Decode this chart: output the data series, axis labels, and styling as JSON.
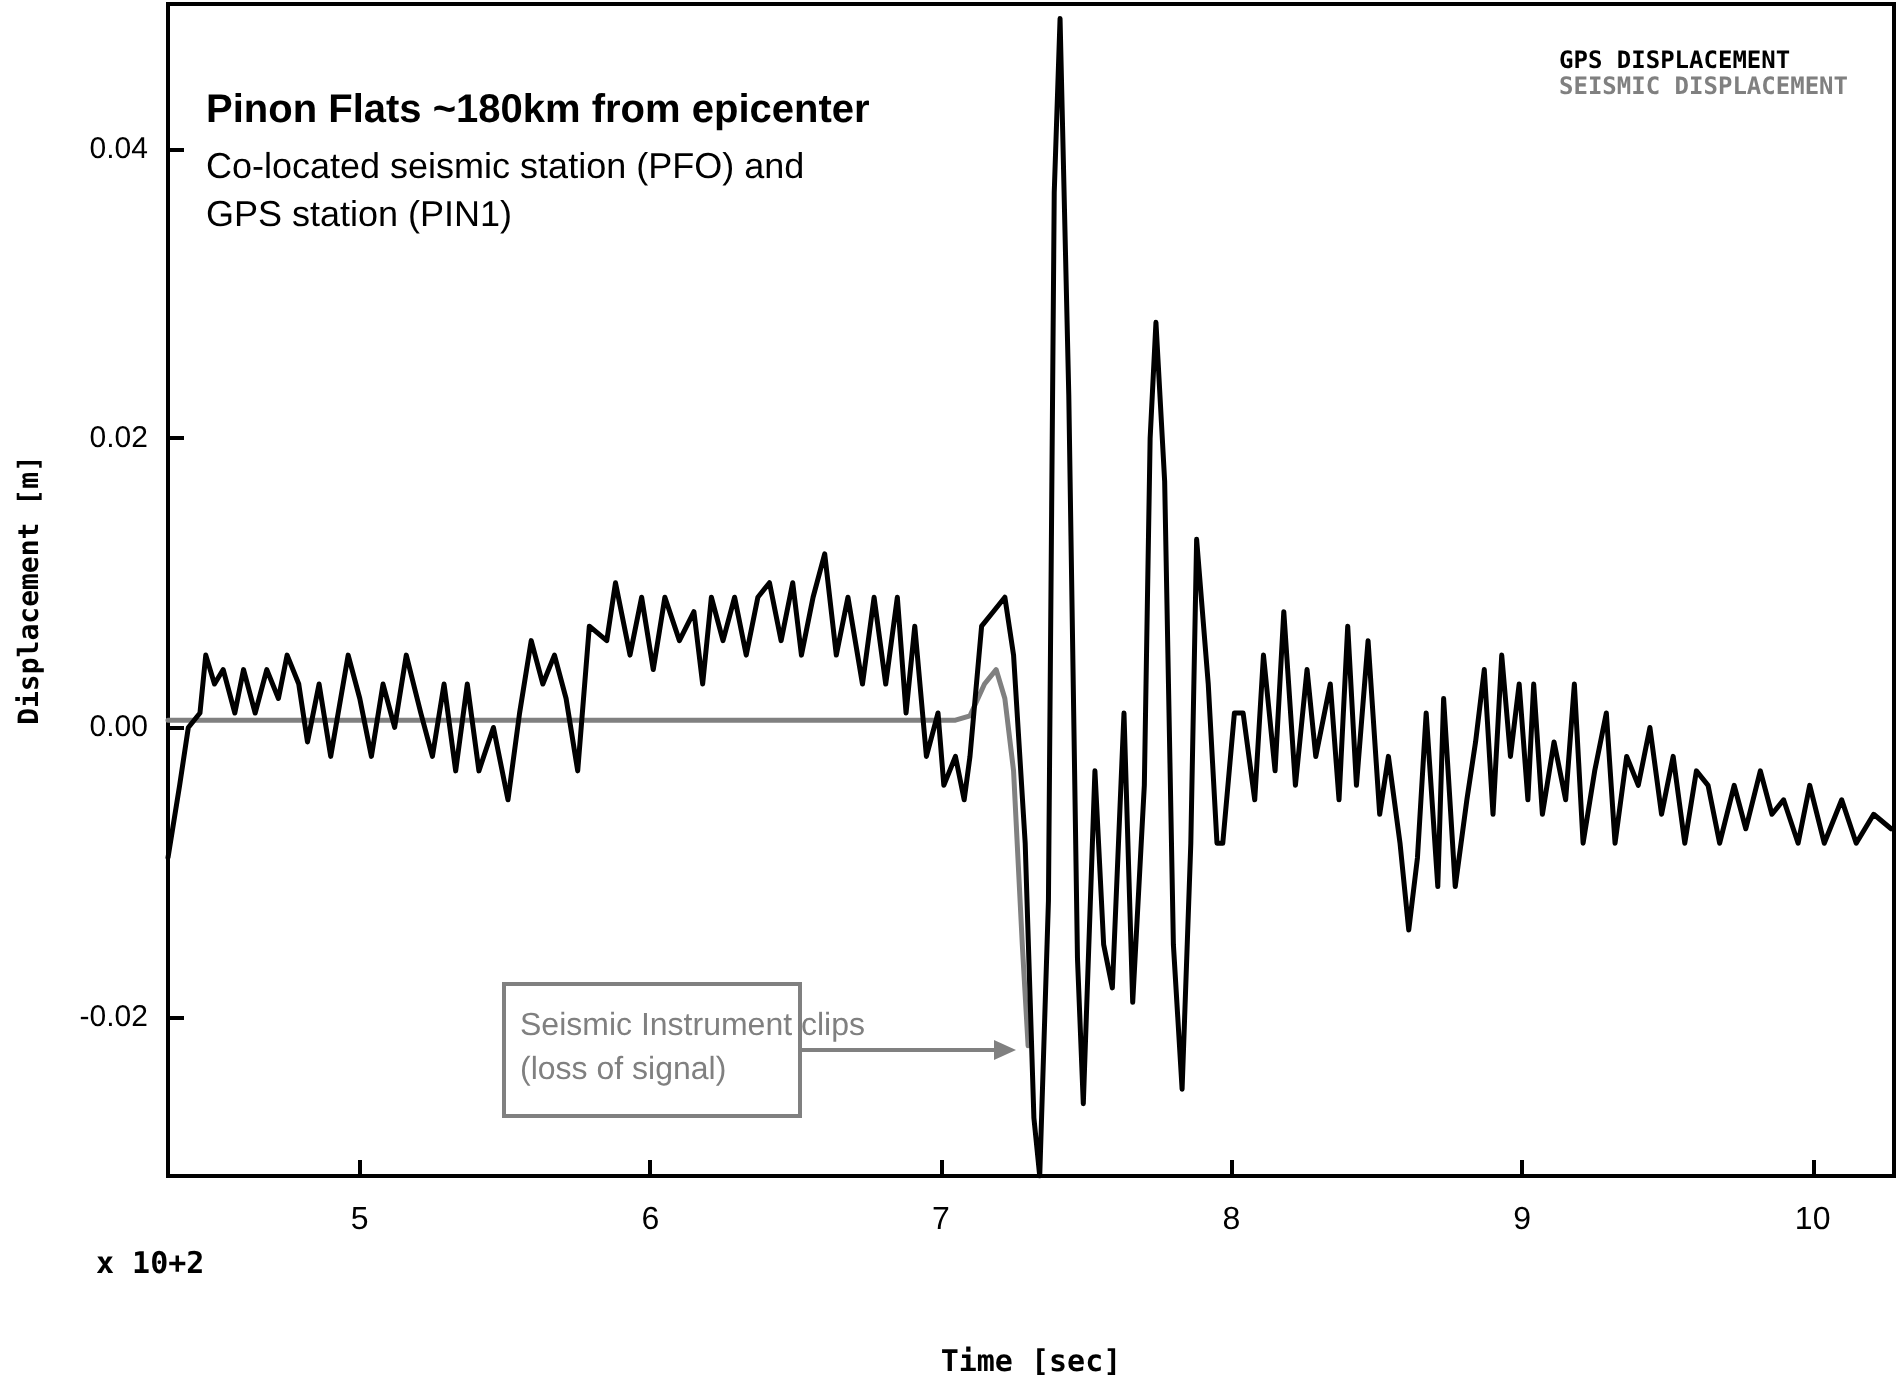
{
  "chart_data": {
    "type": "line",
    "title": "Pinon Flats ~180km from epicenter",
    "subtitle": "Co-located seismic station (PFO) and GPS station (PIN1)",
    "xlabel": "Time [sec]",
    "ylabel": "Displacement [m]",
    "xlim": [
      4.34,
      10.28
    ],
    "xticks": [
      5,
      6,
      7,
      8,
      9,
      10
    ],
    "ylim": [
      -0.031,
      0.05
    ],
    "yticks": [
      -0.02,
      {
        "value": 0,
        "label": "0.00"
      },
      0.02,
      0.04
    ],
    "grid": false,
    "legend": "top right",
    "marker": "none",
    "line_style": "solid",
    "annotations": [
      "Seismic Instrument clips\n(loss of signal)",
      "x 10+2"
    ],
    "series": [
      {
        "name": "GPS DISPLACEMENT",
        "color": "#000000",
        "x": [
          4.34,
          4.38,
          4.41,
          4.45,
          4.47,
          4.5,
          4.53,
          4.57,
          4.6,
          4.64,
          4.68,
          4.72,
          4.75,
          4.79,
          4.82,
          4.86,
          4.9,
          4.96,
          5.0,
          5.04,
          5.08,
          5.12,
          5.16,
          5.21,
          5.25,
          5.29,
          5.33,
          5.37,
          5.41,
          5.46,
          5.51,
          5.55,
          5.59,
          5.63,
          5.67,
          5.71,
          5.75,
          5.77,
          5.79,
          5.85,
          5.88,
          5.93,
          5.97,
          6.01,
          6.05,
          6.1,
          6.15,
          6.18,
          6.21,
          6.25,
          6.29,
          6.33,
          6.37,
          6.41,
          6.45,
          6.49,
          6.52,
          6.56,
          6.6,
          6.64,
          6.68,
          6.73,
          6.77,
          6.81,
          6.85,
          6.88,
          6.91,
          6.95,
          6.99,
          7.01,
          7.05,
          7.08,
          7.1,
          7.14,
          7.18,
          7.22,
          7.25,
          7.29,
          7.32,
          7.34,
          7.37,
          7.39,
          7.41,
          7.44,
          7.47,
          7.49,
          7.53,
          7.56,
          7.59,
          7.63,
          7.66,
          7.7,
          7.72,
          7.74,
          7.77,
          7.8,
          7.83,
          7.86,
          7.88,
          7.92,
          7.95,
          7.97,
          8.01,
          8.04,
          8.08,
          8.11,
          8.15,
          8.18,
          8.22,
          8.26,
          8.29,
          8.34,
          8.37,
          8.4,
          8.43,
          8.47,
          8.51,
          8.54,
          8.58,
          8.61,
          8.64,
          8.67,
          8.71,
          8.73,
          8.77,
          8.81,
          8.84,
          8.87,
          8.9,
          8.93,
          8.96,
          8.99,
          9.02,
          9.04,
          9.07,
          9.11,
          9.15,
          9.18,
          9.21,
          9.25,
          9.29,
          9.32,
          9.36,
          9.4,
          9.44,
          9.48,
          9.52,
          9.56,
          9.6,
          9.64,
          9.68,
          9.73,
          9.77,
          9.82,
          9.86,
          9.9,
          9.95,
          9.99,
          10.04,
          10.1,
          10.15,
          10.21,
          10.27
        ],
        "values": [
          -0.009,
          -0.004,
          0.0,
          0.001,
          0.005,
          0.003,
          0.004,
          0.001,
          0.004,
          0.001,
          0.004,
          0.002,
          0.005,
          0.003,
          -0.001,
          0.003,
          -0.002,
          0.005,
          0.002,
          -0.002,
          0.003,
          0.0,
          0.005,
          0.001,
          -0.002,
          0.003,
          -0.003,
          0.003,
          -0.003,
          0.0,
          -0.005,
          0.001,
          0.006,
          0.003,
          0.005,
          0.002,
          -0.003,
          0.002,
          0.007,
          0.006,
          0.01,
          0.005,
          0.009,
          0.004,
          0.009,
          0.006,
          0.008,
          0.003,
          0.009,
          0.006,
          0.009,
          0.005,
          0.009,
          0.01,
          0.006,
          0.01,
          0.005,
          0.009,
          0.012,
          0.005,
          0.009,
          0.003,
          0.009,
          0.003,
          0.009,
          0.001,
          0.007,
          -0.002,
          0.001,
          -0.004,
          -0.002,
          -0.005,
          -0.002,
          0.007,
          0.008,
          0.009,
          0.005,
          -0.008,
          -0.027,
          -0.031,
          -0.012,
          0.037,
          0.049,
          0.023,
          -0.016,
          -0.026,
          -0.003,
          -0.015,
          -0.018,
          0.001,
          -0.019,
          -0.004,
          0.02,
          0.028,
          0.017,
          -0.015,
          -0.025,
          -0.008,
          0.013,
          0.003,
          -0.008,
          -0.008,
          0.001,
          0.001,
          -0.005,
          0.005,
          -0.003,
          0.008,
          -0.004,
          0.004,
          -0.002,
          0.003,
          -0.005,
          0.007,
          -0.004,
          0.006,
          -0.006,
          -0.002,
          -0.008,
          -0.014,
          -0.009,
          0.001,
          -0.011,
          0.002,
          -0.011,
          -0.005,
          -0.001,
          0.004,
          -0.006,
          0.005,
          -0.002,
          0.003,
          -0.005,
          0.003,
          -0.006,
          -0.001,
          -0.005,
          0.003,
          -0.008,
          -0.003,
          0.001,
          -0.008,
          -0.002,
          -0.004,
          0.0,
          -0.006,
          -0.002,
          -0.008,
          -0.003,
          -0.004,
          -0.008,
          -0.004,
          -0.007,
          -0.003,
          -0.006,
          -0.005,
          -0.008,
          -0.004,
          -0.008,
          -0.005,
          -0.008,
          -0.006,
          -0.007
        ]
      },
      {
        "name": "SEISMIC DISPLACEMENT",
        "color": "#808080",
        "x": [
          4.34,
          7.05,
          7.1,
          7.15,
          7.19,
          7.22,
          7.25,
          7.28,
          7.3
        ],
        "values": [
          0.0005,
          0.0005,
          0.0008,
          0.003,
          0.004,
          0.002,
          -0.003,
          -0.015,
          -0.022
        ]
      }
    ]
  }
}
